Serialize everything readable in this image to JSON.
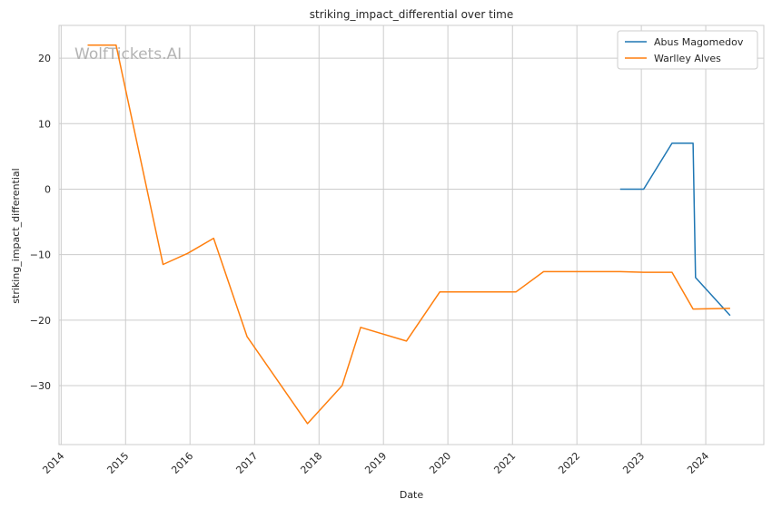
{
  "chart_data": {
    "type": "line",
    "title": "striking_impact_differential over time",
    "xlabel": "Date",
    "ylabel": "striking_impact_differential",
    "watermark": "WolfTickets.AI",
    "xlim": [
      "2013-12-20",
      "2024-11-25"
    ],
    "ylim": [
      -39,
      25
    ],
    "x_ticks": [
      "2014",
      "2015",
      "2016",
      "2017",
      "2018",
      "2019",
      "2020",
      "2021",
      "2022",
      "2023",
      "2024"
    ],
    "y_ticks": [
      20,
      10,
      0,
      -10,
      -20,
      -30
    ],
    "y_tick_labels": [
      "20",
      "10",
      "0",
      "−10",
      "−20",
      "−30"
    ],
    "grid": true,
    "legend_position": "top-right",
    "series": [
      {
        "name": "Abus Magomedov",
        "color": "#1f77b4",
        "points": [
          {
            "x": "2022-09-03",
            "y": 0
          },
          {
            "x": "2023-01-14",
            "y": 0
          },
          {
            "x": "2023-06-24",
            "y": 7
          },
          {
            "x": "2023-10-21",
            "y": 7
          },
          {
            "x": "2023-11-04",
            "y": -13.5
          },
          {
            "x": "2024-05-18",
            "y": -19.3
          }
        ]
      },
      {
        "name": "Warlley Alves",
        "color": "#ff7f0e",
        "points": [
          {
            "x": "2014-05-31",
            "y": 22
          },
          {
            "x": "2014-11-08",
            "y": 22
          },
          {
            "x": "2015-08-01",
            "y": -11.5
          },
          {
            "x": "2015-12-19",
            "y": -9.8
          },
          {
            "x": "2016-05-14",
            "y": -7.5
          },
          {
            "x": "2016-11-19",
            "y": -22.5
          },
          {
            "x": "2017-10-28",
            "y": -35.8
          },
          {
            "x": "2018-05-12",
            "y": -30
          },
          {
            "x": "2018-08-25",
            "y": -21.1
          },
          {
            "x": "2019-05-11",
            "y": -23.2
          },
          {
            "x": "2019-11-16",
            "y": -15.7
          },
          {
            "x": "2021-01-20",
            "y": -15.7
          },
          {
            "x": "2021-06-26",
            "y": -12.6
          },
          {
            "x": "2022-09-03",
            "y": -12.6
          },
          {
            "x": "2023-01-14",
            "y": -12.7
          },
          {
            "x": "2023-06-24",
            "y": -12.7
          },
          {
            "x": "2023-10-21",
            "y": -18.3
          },
          {
            "x": "2024-05-18",
            "y": -18.2
          }
        ]
      }
    ]
  }
}
